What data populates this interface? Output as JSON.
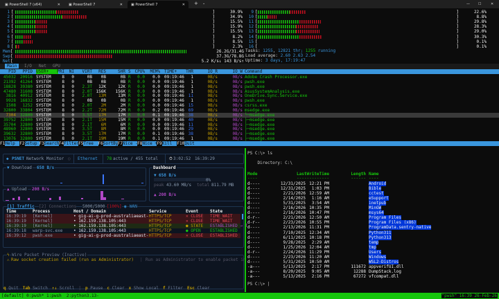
{
  "window": {
    "tabs": [
      {
        "label": "PowerShell 7 (x64)",
        "active": false
      },
      {
        "label": "PowerShell 7",
        "active": false
      },
      {
        "label": "PowerShell 7",
        "active": true
      }
    ],
    "new_tab": "+",
    "dropdown": "⌄",
    "minimize": "—",
    "maximize": "☐",
    "close": "✕"
  },
  "htop": {
    "cpus": [
      {
        "label": "1",
        "user": 19.8,
        "kernel": 11.1,
        "value": "30.9%"
      },
      {
        "label": "2",
        "user": 23.0,
        "kernel": 11.9,
        "value": "34.9%"
      },
      {
        "label": "3",
        "user": 9.7,
        "kernel": 5.8,
        "value": "15.5%"
      },
      {
        "label": "4",
        "user": 9.7,
        "kernel": 6.2,
        "value": "15.9%"
      },
      {
        "label": "5",
        "user": 9.7,
        "kernel": 5.8,
        "value": "15.5%"
      },
      {
        "label": "6",
        "user": 4.2,
        "kernel": 4.0,
        "value": "8.2%"
      },
      {
        "label": "7",
        "user": 4.2,
        "kernel": 4.3,
        "value": "8.5%"
      },
      {
        "label": "8",
        "user": 0.3,
        "kernel": 2.0,
        "value": "2.3%"
      },
      {
        "label": "9",
        "user": 14.9,
        "kernel": 7.7,
        "value": "22.6%"
      },
      {
        "label": "10",
        "user": 4.5,
        "kernel": 4.3,
        "value": "8.8%"
      },
      {
        "label": "11",
        "user": 19.7,
        "kernel": 10.1,
        "value": "29.8%"
      },
      {
        "label": "12",
        "user": 18.1,
        "kernel": 10.2,
        "value": "28.3%"
      },
      {
        "label": "13",
        "user": 18.1,
        "kernel": 10.9,
        "value": "29.0%"
      },
      {
        "label": "14",
        "user": 19.7,
        "kernel": 10.6,
        "value": "30.3%"
      },
      {
        "label": "15",
        "user": 0,
        "kernel": 0.1,
        "value": "0.1%"
      },
      {
        "label": "16",
        "user": 0,
        "kernel": 0.1,
        "value": "0.1%"
      }
    ],
    "mem": {
      "label": "Mem",
      "used_pct": 83,
      "value": "26.2G/31.4G"
    },
    "swp": {
      "label": "Swp",
      "used_pct": 47,
      "value": "37.3G/78.8G"
    },
    "net": {
      "label": "Net",
      "value": "5.2 K/s↓ 143 B/s↑"
    },
    "tasks": {
      "label": "Tasks: ",
      "count": "1255",
      "sep1": ", ",
      "thr": "12821",
      "thr_label": " thr; ",
      "running": "1255",
      "running_label": " running"
    },
    "load": {
      "label": "Load average: ",
      "value": "2.60 2.63 2.54"
    },
    "uptime": {
      "label": "Uptime: ",
      "value": "3 days, 17:19:47"
    },
    "tabs": [
      "Main",
      "I/O",
      "Net",
      "GPU"
    ],
    "columns": [
      "PID",
      "PPID",
      "USER+",
      "PRI",
      "NI",
      "VIRT",
      "RES",
      "SHR",
      "S",
      "CPU%",
      "MEM%",
      "TIME+",
      "THR",
      "IO_R",
      "IO_W",
      "Command"
    ],
    "rows": [
      [
        "45032",
        "20916",
        "SYSTEM",
        "8",
        "0",
        "0B",
        "0B",
        "0B",
        "R",
        "0.0",
        "0.0",
        "09:19:46",
        "1",
        "0B/s",
        "0B/s",
        "Adobe Crash Processor.exe"
      ],
      [
        "21392",
        "41264",
        "SYSTEM",
        "8",
        "0",
        "0B",
        "0B",
        "0B",
        "R",
        "0.0",
        "0.0",
        "09:19:46",
        "1",
        "0B/s",
        "0B/s",
        "pwsh.exe"
      ],
      [
        "18828",
        "39380",
        "SYSTEM",
        "8",
        "0",
        "2.3T",
        "12K",
        "12K",
        "R",
        "0.0",
        "0.0",
        "09:19:46",
        "1",
        "0B/s",
        "0B/s",
        "pwsh.exe"
      ],
      [
        "47480",
        "31608",
        "SYSTEM",
        "8",
        "0",
        "2.0T",
        "156K",
        "156K",
        "R",
        "0.0",
        "0.0",
        "09:19:46",
        "1",
        "0B/s",
        "0B/s",
        "AsusSystemAnalysis.exe"
      ],
      [
        "3816",
        "40912",
        "SYSTEM",
        "8",
        "0",
        "2.0T",
        "13M",
        "13M",
        "R",
        "0.0",
        "0.0",
        "09:19:46",
        "11",
        "0B/s",
        "0B/s",
        "OneDrive.Sync.Service.exe"
      ],
      [
        "9928",
        "16832",
        "SYSTEM",
        "8",
        "0",
        "0B",
        "0B",
        "0B",
        "R",
        "0.0",
        "0.0",
        "09:19:46",
        "1",
        "0B/s",
        "0B/s",
        "pwsh.exe"
      ],
      [
        "1508",
        "1252",
        "SYSTEM",
        "8",
        "0",
        "2.0T",
        "2M",
        "2M",
        "R",
        "0.0",
        "0.0",
        "09:19:46",
        "15",
        "0B/s",
        "0B/s",
        "csrss.exe"
      ],
      [
        "32800",
        "33804",
        "SYSTEM",
        "8",
        "0",
        "2.2T",
        "72M",
        "72M",
        "R",
        "0.0",
        "0.2",
        "09:19:46",
        "69",
        "0B/s",
        "0B/s",
        "msedge.exe"
      ],
      [
        "7304",
        "32800",
        "SYSTEM",
        "8",
        "0",
        "3.5T",
        "17M",
        "17M",
        "R",
        "0.0",
        "0.1",
        "09:19:46",
        "38",
        "0B/s",
        "0B/s",
        "└─msedge.exe"
      ],
      [
        "39752",
        "32800",
        "SYSTEM",
        "8",
        "0",
        "2.1T",
        "15M",
        "15M",
        "R",
        "0.0",
        "0.0",
        "09:19:46",
        "40",
        "0B/s",
        "0B/s",
        "├─msedge.exe"
      ],
      [
        "35704",
        "32800",
        "SYSTEM",
        "8",
        "0",
        "2.1T",
        "6M",
        "6M",
        "R",
        "0.0",
        "0.0",
        "09:19:46",
        "11",
        "0B/s",
        "0B/s",
        "├─msedge.exe"
      ],
      [
        "48960",
        "32800",
        "SYSTEM",
        "8",
        "0",
        "3.5T",
        "8M",
        "8M",
        "R",
        "0.0",
        "0.0",
        "09:19:46",
        "29",
        "0B/s",
        "0B/s",
        "├─msedge.exe"
      ],
      [
        "39632",
        "32800",
        "SYSTEM",
        "8",
        "0",
        "3.5T",
        "17M",
        "17M",
        "R",
        "0.0",
        "0.1",
        "09:19:46",
        "38",
        "0B/s",
        "0B/s",
        "├─msedge.exe"
      ],
      [
        "13076",
        "32800",
        "SYSTEM",
        "8",
        "0",
        "2.1T",
        "19M",
        "19M",
        "R",
        "0.0",
        "0.1",
        "09:19:46",
        "1",
        "0B/s",
        "0B/s",
        "├─msedge.exe"
      ]
    ],
    "selected_row": 8,
    "fkeys": [
      {
        "key": "F1",
        "label": "Help"
      },
      {
        "key": "F2",
        "label": "Setup"
      },
      {
        "key": "F3",
        "label": "Search"
      },
      {
        "key": "F4",
        "label": "Filter"
      },
      {
        "key": "F5",
        "label": "Tree"
      },
      {
        "key": "F6",
        "label": "SortBy"
      },
      {
        "key": "F7",
        "label": "Nice -"
      },
      {
        "key": "F8",
        "label": "Nice +"
      },
      {
        "key": "F9",
        "label": "Kill"
      },
      {
        "key": "F10",
        "label": "Quit"
      }
    ]
  },
  "psnet": {
    "title_brand": "PSNET",
    "title": "Network Monitor",
    "interface": "Ethernet",
    "active": "78",
    "active_label": "active / 455 total",
    "uptime": "3:02:52",
    "clock": "16:39:29",
    "download_label": "Download",
    "download_rate": "658 B/s",
    "upload_label": "Upload",
    "upload_rate": "208 B/s",
    "dashboard": {
      "title": "Dashboard",
      "down": "658 B/s",
      "pct": "0%",
      "peak_label": "peak",
      "peak": "43.60 MB/s",
      "total_label": "total",
      "total": "811.79 MB",
      "up": "208 B/s"
    },
    "tabs": {
      "traffic": "[1] Traffic",
      "connections": "[2] Connections",
      "count": "5000/5000",
      "pct": "[100%]",
      "scope": "WAN"
    },
    "columns": [
      "Time",
      "Process",
      "Host / Domain",
      "Service",
      "Event",
      "State"
    ],
    "rows": [
      {
        "time": "16:39:19",
        "process": "[Kernel]",
        "host": "gig-ai-g-prod-australiaeast-",
        "service": "HTTPS/TCP",
        "event": "✕ CLOSE",
        "state": "TIME_WAIT",
        "kind": "close"
      },
      {
        "time": "16:39:19",
        "process": "[Kernel]",
        "host": "162.159.138.105:443",
        "service": "HTTPS/TCP",
        "event": "✕ CLOSE",
        "state": "TIME_WAIT",
        "kind": "close"
      },
      {
        "time": "16:39:19",
        "process": "[Kernel]",
        "host": "162.159.138.105:443",
        "service": "HTTPS/TCP",
        "event": "● STATE",
        "state": "ESTABLISHED → T",
        "kind": "state"
      },
      {
        "time": "16:39:18",
        "process": "warp-svc.exe",
        "host": "162.159.138.105:443",
        "service": "HTTPS/TCP",
        "event": "● OPEN",
        "state": "ESTABLISHED",
        "kind": "open"
      },
      {
        "time": "16:39:12",
        "process": "pwsh.exe",
        "host": "gig-ai-g-prod-australiaeast-",
        "service": "HTTPS/TCP",
        "event": "✕ CLOSE",
        "state": "ESTABLISHED",
        "kind": "close"
      }
    ],
    "wire": {
      "title": "Wire Packet Preview (Inactive)",
      "error": "Raw socket creation failed (run as Administrator)",
      "hint": "Run as Administrator to enable packet in"
    },
    "footer": [
      {
        "key": "q",
        "label": "Quit"
      },
      {
        "key": "Tab",
        "label": "Switch"
      },
      {
        "key": "↑↓",
        "label": "Scroll"
      },
      {
        "key": "|",
        "label": ""
      },
      {
        "key": "p",
        "label": "Pause"
      },
      {
        "key": "c",
        "label": "Clear"
      },
      {
        "key": "x",
        "label": "Show Local"
      },
      {
        "key": "f",
        "label": "Filter"
      },
      {
        "key": "Esc",
        "label": "Clear"
      }
    ]
  },
  "pwsh": {
    "command": "PS C:\\> ls",
    "directory": "    Directory: C:\\",
    "columns": [
      "Mode",
      "LastWriteTime",
      "Length",
      "Name"
    ],
    "rows": [
      {
        "mode": "d----",
        "date": "12/31/2025",
        "time": "12:21 PM",
        "length": "",
        "name": "Android",
        "dir": true
      },
      {
        "mode": "d----",
        "date": "12/31/2025",
        "time": "1:03 PM",
        "length": "",
        "name": "Bible",
        "dir": true
      },
      {
        "mode": "d----",
        "date": "2/21/2026",
        "time": "12:59 AM",
        "length": "",
        "name": "cctest",
        "dir": true
      },
      {
        "mode": "d----",
        "date": "2/14/2025",
        "time": "1:16 AM",
        "length": "",
        "name": "eSupport",
        "dir": true
      },
      {
        "mode": "d----",
        "date": "5/31/2025",
        "time": "3:54 AM",
        "length": "",
        "name": "inetpub",
        "dir": true
      },
      {
        "mode": "d----",
        "date": "2/16/2026",
        "time": "10:35 PM",
        "length": "",
        "name": "MinGW",
        "dir": true
      },
      {
        "mode": "d----",
        "date": "2/16/2026",
        "time": "10:47 PM",
        "length": "",
        "name": "msys64",
        "dir": true
      },
      {
        "mode": "d-r--",
        "date": "2/21/2026",
        "time": "12:50 AM",
        "length": "",
        "name": "Program Files",
        "dir": true
      },
      {
        "mode": "d-r--",
        "date": "2/23/2026",
        "time": "10:55 PM",
        "length": "",
        "name": "Program Files (x86)",
        "dir": true
      },
      {
        "mode": "d----",
        "date": "2/13/2026",
        "time": "11:31 PM",
        "length": "",
        "name": "ProgramData.sentry-native",
        "dir": true
      },
      {
        "mode": "d----",
        "date": "7/10/2025",
        "time": "12:34 AM",
        "length": "",
        "name": "Python311",
        "dir": true
      },
      {
        "mode": "d----",
        "date": "6/11/2025",
        "time": "10:18 PM",
        "length": "",
        "name": "Python313",
        "dir": true
      },
      {
        "mode": "d----",
        "date": "9/28/2025",
        "time": "2:29 AM",
        "length": "",
        "name": "temp",
        "dir": true
      },
      {
        "mode": "d----",
        "date": "1/25/2026",
        "time": "12:04 AM",
        "length": "",
        "name": "tmp",
        "dir": true
      },
      {
        "mode": "d-r--",
        "date": "2/24/2026",
        "time": "11:29 PM",
        "length": "",
        "name": "Users",
        "dir": true
      },
      {
        "mode": "d----",
        "date": "2/23/2026",
        "time": "11:20 AM",
        "length": "",
        "name": "Windows",
        "dir": true
      },
      {
        "mode": "d----",
        "date": "5/31/2025",
        "time": "10:50 AM",
        "length": "",
        "name": "WSL2-Distros",
        "dir": true
      },
      {
        "mode": "-a---",
        "date": "5/13/2025",
        "time": "2:17 PM",
        "length": "111672",
        "name": "appverifUI.dll",
        "dir": false
      },
      {
        "mode": "-a---",
        "date": "8/20/2025",
        "time": "9:05 AM",
        "length": "12288",
        "name": "DumpStack.log",
        "dir": false
      },
      {
        "mode": "-a---",
        "date": "5/13/2025",
        "time": "2:16 PM",
        "length": "67272",
        "name": "vfcompat.dll",
        "dir": false
      }
    ],
    "prompt": "PS C:\\> "
  },
  "tmux": {
    "left": "[default] 0:pwsh* 1:pwsh  2:python3.13-",
    "right": "\"pwsh\" 16:39 26-Feb-26"
  },
  "colors": {
    "green": "#16c60c",
    "red": "#c50f1f",
    "blue": "#3a96dd",
    "yellow": "#c19c00",
    "purple": "#b148c6",
    "selection": "#0037da"
  }
}
